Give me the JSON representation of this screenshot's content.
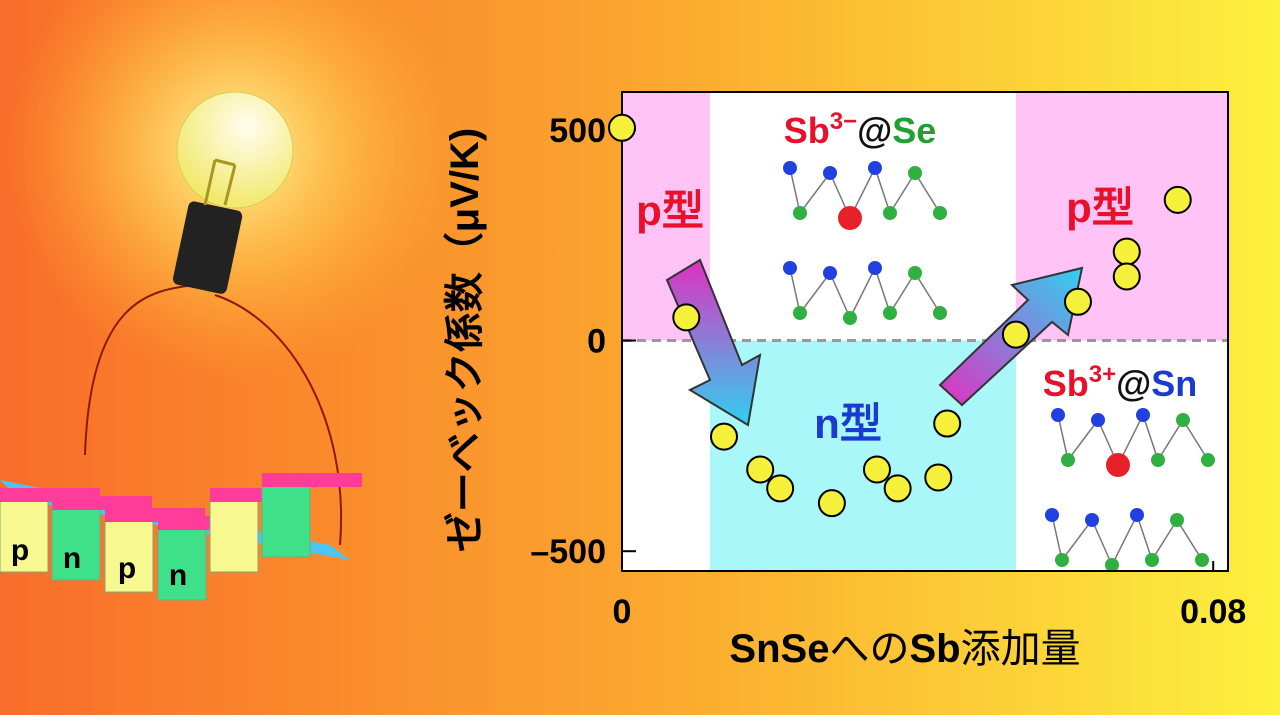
{
  "chart_data": {
    "type": "scatter",
    "y_label": "ゼーベック係数（μV/K)",
    "x_label": [
      "SnSe",
      "へ",
      "の",
      "Sb",
      "添加量"
    ],
    "x": [
      0,
      0.0087,
      0.0138,
      0.0187,
      0.0214,
      0.0284,
      0.0345,
      0.0373,
      0.0428,
      0.044,
      0.0533,
      0.0617,
      0.0683,
      0.0683,
      0.0752
    ],
    "values": [
      505,
      55,
      -228,
      -306,
      -351,
      -386,
      -306,
      -351,
      -325,
      -197,
      14,
      92,
      211,
      152,
      334
    ],
    "color": "#f5f03a",
    "xlim": [
      0,
      0.082
    ],
    "xticks": [
      0,
      0.08
    ],
    "ylim": [
      -547,
      590
    ],
    "yticks": [
      500,
      0,
      {
        "value": -500,
        "label": "–500"
      }
    ],
    "regions": [
      {
        "x": [
          0,
          0.0119
        ],
        "y": [
          0,
          590
        ],
        "color": "#ffc4f5"
      },
      {
        "x": [
          0.0119,
          0.0533
        ],
        "y": [
          0,
          590
        ],
        "color": "#ffffff"
      },
      {
        "x": [
          0.0119,
          0.0533
        ],
        "y": [
          -547,
          0
        ],
        "color": "#aaf7f9"
      },
      {
        "x": [
          0.0533,
          0.082
        ],
        "y": [
          0,
          590
        ],
        "color": "#ffc4f5"
      }
    ],
    "annotations": {
      "p_left": "p型",
      "n_mid": "n型",
      "p_right": "p型",
      "sb_se": [
        "Sb",
        "3−",
        "@",
        "Se"
      ],
      "sb_sn": [
        "Sb",
        "3+",
        "@",
        "Sn"
      ]
    }
  },
  "illustration": {
    "labels": [
      "p",
      "n",
      "p",
      "n"
    ]
  }
}
